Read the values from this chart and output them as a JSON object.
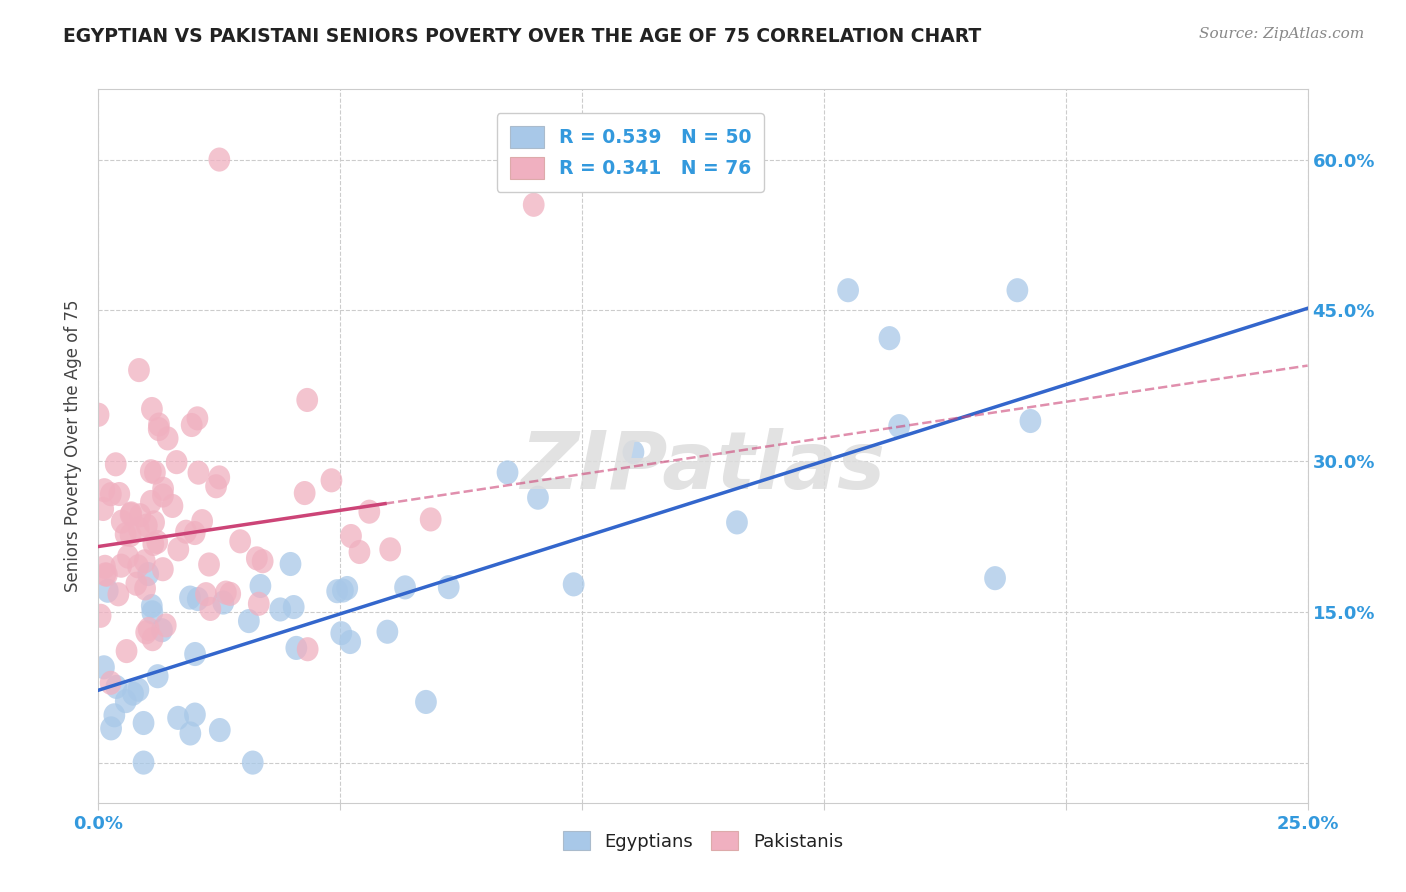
{
  "title": "EGYPTIAN VS PAKISTANI SENIORS POVERTY OVER THE AGE OF 75 CORRELATION CHART",
  "source": "Source: ZipAtlas.com",
  "ylabel": "Seniors Poverty Over the Age of 75",
  "xlim": [
    0.0,
    0.25
  ],
  "ylim": [
    -0.04,
    0.67
  ],
  "watermark": "ZIPatlas",
  "background_color": "#ffffff",
  "grid_color": "#cccccc",
  "blue_color": "#a8c8e8",
  "pink_color": "#f0b0c0",
  "blue_line_color": "#3366cc",
  "pink_line_color": "#cc4477",
  "eg_slope": 1.52,
  "eg_intercept": 0.072,
  "pk_slope": 0.72,
  "pk_intercept": 0.215,
  "eg_N": 50,
  "pk_N": 76,
  "legend_blue_label": "R = 0.539   N = 50",
  "legend_pink_label": "R = 0.341   N = 76",
  "eg_seed": 42,
  "pk_seed": 7
}
